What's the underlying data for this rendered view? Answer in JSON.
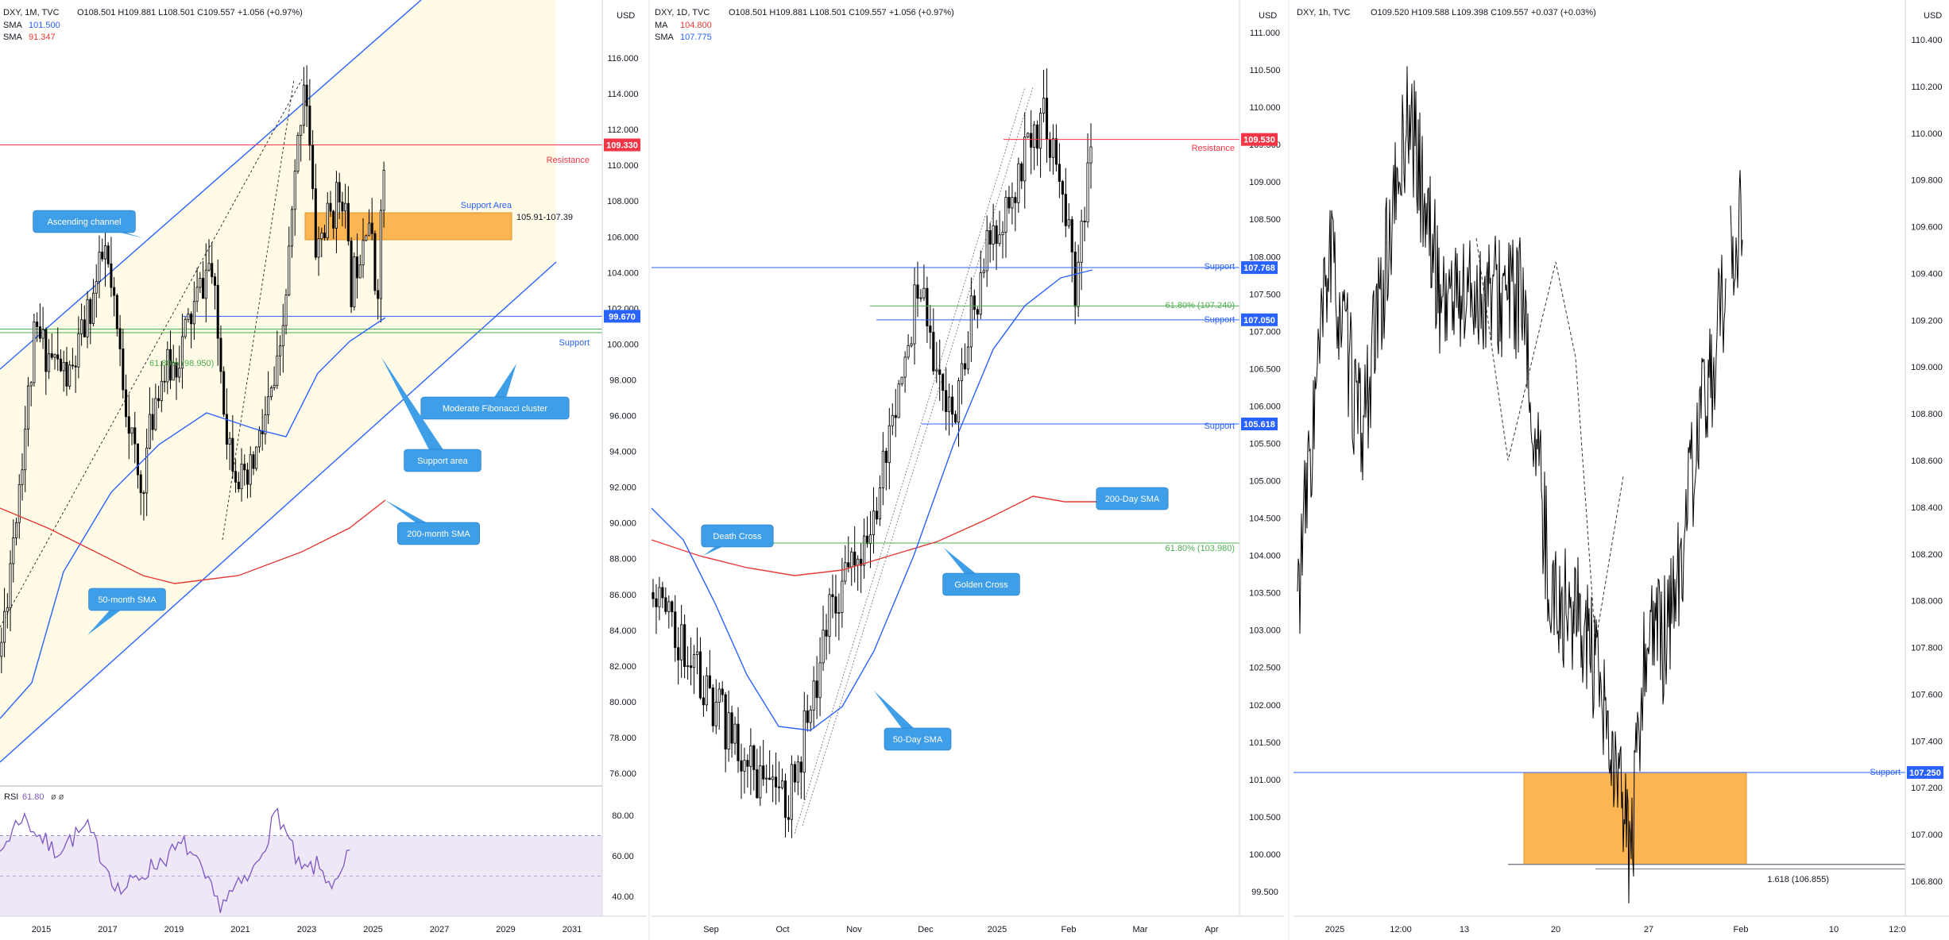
{
  "colors": {
    "bull_bear": "#000000",
    "resistance": "#f23645",
    "support": "#2962ff",
    "fib": "#4caf50",
    "sma_blue": "#2962ff",
    "sma_red": "#e53935",
    "zone": "#fbb552",
    "callout": "#3e9ee8",
    "channel_fill": "#fffbe6",
    "rsi": "#7e57c2"
  },
  "panels": [
    {
      "id": "monthly",
      "header": "DXY, 1M, TVC",
      "ohlc": "O108.501  H109.881  L108.501  C109.557  +1.056 (+0.97%)",
      "indicators": [
        {
          "label": "SMA",
          "value": "101.500",
          "color": "#2962ff"
        },
        {
          "label": "SMA",
          "value": "91.347",
          "color": "#e53935"
        }
      ],
      "currency": "USD",
      "price_ticks": [
        "116.000",
        "114.000",
        "112.000",
        "110.000",
        "108.000",
        "106.000",
        "104.000",
        "102.000",
        "100.000",
        "98.000",
        "96.000",
        "94.000",
        "92.000",
        "90.000",
        "88.000",
        "86.000",
        "84.000",
        "82.000",
        "80.000",
        "78.000",
        "76.000"
      ],
      "time_ticks": [
        "2015",
        "2017",
        "2019",
        "2021",
        "2023",
        "2025",
        "2027",
        "2029",
        "2031"
      ],
      "price_tags": [
        {
          "text": "109.330",
          "kind": "resistance"
        },
        {
          "text": "99.670",
          "kind": "support"
        }
      ],
      "line_labels": [
        {
          "text": "Resistance",
          "kind": "resistance"
        },
        {
          "text": "Support Area",
          "kind": "support"
        },
        {
          "text": "Support",
          "kind": "support"
        },
        {
          "text": "61.80% (98.950)",
          "kind": "fib"
        },
        {
          "text": "105.91-107.39",
          "kind": "plain"
        }
      ],
      "callouts": [
        "Ascending channel",
        "Moderate Fibonacci cluster",
        "Support area",
        "200-month SMA",
        "50-month SMA"
      ],
      "rsi": {
        "label": "RSI",
        "value": "61.80",
        "extra": "ø  ø",
        "ticks": [
          "80.00",
          "60.00",
          "40.00"
        ]
      }
    },
    {
      "id": "daily",
      "header": "DXY, 1D, TVC",
      "ohlc": "O108.501  H109.881  L108.501  C109.557  +1.056 (+0.97%)",
      "indicators": [
        {
          "label": "MA",
          "value": "104.800",
          "color": "#e53935"
        },
        {
          "label": "SMA",
          "value": "107.775",
          "color": "#2962ff"
        }
      ],
      "currency": "USD",
      "price_ticks": [
        "111.000",
        "110.500",
        "110.000",
        "109.500",
        "109.000",
        "108.500",
        "108.000",
        "107.500",
        "107.000",
        "106.500",
        "106.000",
        "105.500",
        "105.000",
        "104.500",
        "104.000",
        "103.500",
        "103.000",
        "102.500",
        "102.000",
        "101.500",
        "101.000",
        "100.500",
        "100.000",
        "99.500"
      ],
      "time_ticks": [
        "Sep",
        "Oct",
        "Nov",
        "Dec",
        "2025",
        "Feb",
        "Mar",
        "Apr"
      ],
      "price_tags": [
        {
          "text": "109.530",
          "kind": "resistance"
        },
        {
          "text": "107.768",
          "kind": "support"
        },
        {
          "text": "107.050",
          "kind": "support"
        },
        {
          "text": "105.618",
          "kind": "support"
        }
      ],
      "line_labels": [
        {
          "text": "Resistance",
          "kind": "resistance"
        },
        {
          "text": "Support",
          "kind": "support"
        },
        {
          "text": "61.80% (107.240)",
          "kind": "fib"
        },
        {
          "text": "Support",
          "kind": "support"
        },
        {
          "text": "Support",
          "kind": "support"
        },
        {
          "text": "61.80% (103.980)",
          "kind": "fib"
        }
      ],
      "callouts": [
        "200-Day SMA",
        "Death Cross",
        "Golden Cross",
        "50-Day SMA"
      ]
    },
    {
      "id": "hourly",
      "header": "DXY, 1h, TVC",
      "ohlc": "O109.520  H109.588  L109.398  C109.557  +0.037 (+0.03%)",
      "indicators": [],
      "currency": "USD",
      "price_ticks": [
        "110.400",
        "110.200",
        "110.000",
        "109.800",
        "109.600",
        "109.400",
        "109.200",
        "109.000",
        "108.800",
        "108.600",
        "108.400",
        "108.200",
        "108.000",
        "107.800",
        "107.600",
        "107.400",
        "107.200",
        "107.000",
        "106.800"
      ],
      "time_ticks": [
        "2025",
        "12:00",
        "13",
        "20",
        "27",
        "Feb",
        "10",
        "12:0"
      ],
      "price_tags": [
        {
          "text": "107.250",
          "kind": "support"
        }
      ],
      "line_labels": [
        {
          "text": "Support",
          "kind": "support"
        },
        {
          "text": "1.618 (106.855)",
          "kind": "plain"
        }
      ],
      "callouts": []
    }
  ],
  "chart_data": [
    {
      "type": "candlestick",
      "title": "DXY, 1M, TVC",
      "ylabel": "USD",
      "ylim": [
        75,
        117
      ],
      "x": [
        2014.0,
        2015.0,
        2016.0,
        2017.0,
        2018.0,
        2018.5,
        2019.0,
        2020.0,
        2020.5,
        2021.0,
        2022.0,
        2022.7,
        2023.0,
        2023.8,
        2024.0,
        2024.5,
        2024.75,
        2025.0
      ],
      "close": [
        80.5,
        98.6,
        96.0,
        103.3,
        89.5,
        96.0,
        97.0,
        102.8,
        93.0,
        89.6,
        97.0,
        114.0,
        103.5,
        107.0,
        101.0,
        106.0,
        100.5,
        109.5
      ],
      "series": [
        {
          "name": "SMA",
          "values_label": "101.500"
        },
        {
          "name": "SMA",
          "values_label": "91.347"
        }
      ],
      "levels": [
        {
          "name": "Resistance",
          "value": 109.33
        },
        {
          "name": "Support",
          "value": 99.67
        },
        {
          "name": "61.80%",
          "value": 98.95
        }
      ],
      "zones": [
        {
          "name": "Support Area",
          "low": 105.91,
          "high": 107.39
        }
      ],
      "rsi": {
        "x": [
          2014.0,
          2015.0,
          2016.0,
          2017.0,
          2018.0,
          2019.0,
          2020.0,
          2021.0,
          2022.0,
          2022.8,
          2023.5,
          2024.0,
          2024.6,
          2025.0
        ],
        "values": [
          52,
          80,
          62,
          74,
          42,
          55,
          66,
          36,
          50,
          82,
          52,
          55,
          44,
          61.8
        ],
        "ylim": [
          20,
          90
        ]
      }
    },
    {
      "type": "candlestick",
      "title": "DXY, 1D, TVC",
      "ylabel": "USD",
      "ylim": [
        99.2,
        111.2
      ],
      "x": [
        "2024-08-01",
        "2024-08-15",
        "2024-09-01",
        "2024-09-15",
        "2024-09-27",
        "2024-10-01",
        "2024-10-15",
        "2024-11-01",
        "2024-11-12",
        "2024-11-22",
        "2024-12-01",
        "2024-12-06",
        "2024-12-20",
        "2025-01-02",
        "2025-01-13",
        "2025-01-20",
        "2025-01-27",
        "2025-02-03"
      ],
      "close": [
        103.3,
        102.5,
        101.5,
        100.8,
        100.4,
        100.8,
        103.0,
        104.0,
        106.0,
        107.5,
        106.0,
        105.8,
        108.0,
        109.0,
        109.9,
        109.0,
        107.5,
        109.6
      ],
      "series": [
        {
          "name": "MA",
          "values_label": "104.800"
        },
        {
          "name": "SMA",
          "values_label": "107.775"
        }
      ],
      "levels": [
        {
          "name": "Resistance",
          "value": 109.53
        },
        {
          "name": "Support",
          "value": 107.768
        },
        {
          "name": "61.80%",
          "value": 107.24
        },
        {
          "name": "Support",
          "value": 107.05
        },
        {
          "name": "Support",
          "value": 105.618
        },
        {
          "name": "61.80%",
          "value": 103.98
        }
      ]
    },
    {
      "type": "line",
      "title": "DXY, 1h, TVC",
      "ylabel": "USD",
      "ylim": [
        106.72,
        110.48
      ],
      "x": [
        "2025-01-06",
        "2025-01-08",
        "2025-01-10",
        "2025-01-13",
        "2025-01-15",
        "2025-01-17",
        "2025-01-20",
        "2025-01-22",
        "2025-01-24",
        "2025-01-27",
        "2025-01-28",
        "2025-01-29",
        "2025-01-30",
        "2025-01-31",
        "2025-02-03"
      ],
      "values": [
        108.0,
        109.5,
        108.7,
        110.1,
        109.3,
        109.3,
        109.3,
        108.0,
        107.9,
        106.9,
        107.9,
        107.8,
        108.1,
        108.6,
        109.7
      ],
      "levels": [
        {
          "name": "Support",
          "value": 107.25
        },
        {
          "name": "1.618",
          "value": 106.855
        }
      ],
      "zones": [
        {
          "name": "",
          "low": 106.855,
          "high": 107.25
        }
      ]
    }
  ]
}
